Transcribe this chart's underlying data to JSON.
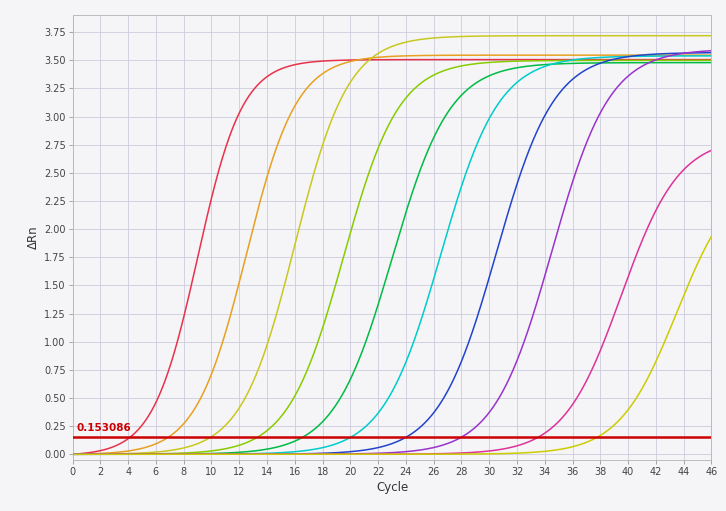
{
  "xlabel": "Cycle",
  "ylabel": "ΔRn",
  "xlim": [
    0,
    46
  ],
  "ylim": [
    -0.05,
    3.9
  ],
  "xticks": [
    0,
    2,
    4,
    6,
    8,
    10,
    12,
    14,
    16,
    18,
    20,
    22,
    24,
    26,
    28,
    30,
    32,
    34,
    36,
    38,
    40,
    42,
    44,
    46
  ],
  "yticks": [
    0.0,
    0.25,
    0.5,
    0.75,
    1.0,
    1.25,
    1.5,
    1.75,
    2.0,
    2.25,
    2.5,
    2.75,
    3.0,
    3.25,
    3.5,
    3.75
  ],
  "threshold": 0.153086,
  "threshold_color": "#cc0000",
  "background_color": "#f5f5f8",
  "grid_color": "#ccccdd",
  "curves": [
    {
      "color": "#e8324a",
      "midpoint": 9.0,
      "plateau": 3.52,
      "steepness": 0.62
    },
    {
      "color": "#e8a020",
      "midpoint": 12.5,
      "plateau": 3.55,
      "steepness": 0.55
    },
    {
      "color": "#c8c820",
      "midpoint": 16.0,
      "plateau": 3.72,
      "steepness": 0.52
    },
    {
      "color": "#88cc00",
      "midpoint": 19.5,
      "plateau": 3.5,
      "steepness": 0.5
    },
    {
      "color": "#00bb44",
      "midpoint": 23.0,
      "plateau": 3.48,
      "steepness": 0.48
    },
    {
      "color": "#00cccc",
      "midpoint": 26.5,
      "plateau": 3.54,
      "steepness": 0.48
    },
    {
      "color": "#2244cc",
      "midpoint": 30.5,
      "plateau": 3.57,
      "steepness": 0.48
    },
    {
      "color": "#9933cc",
      "midpoint": 34.5,
      "plateau": 3.6,
      "steepness": 0.48
    },
    {
      "color": "#dd3399",
      "midpoint": 39.5,
      "plateau": 2.82,
      "steepness": 0.48
    },
    {
      "color": "#cccc00",
      "midpoint": 43.5,
      "plateau": 2.52,
      "steepness": 0.48
    }
  ]
}
